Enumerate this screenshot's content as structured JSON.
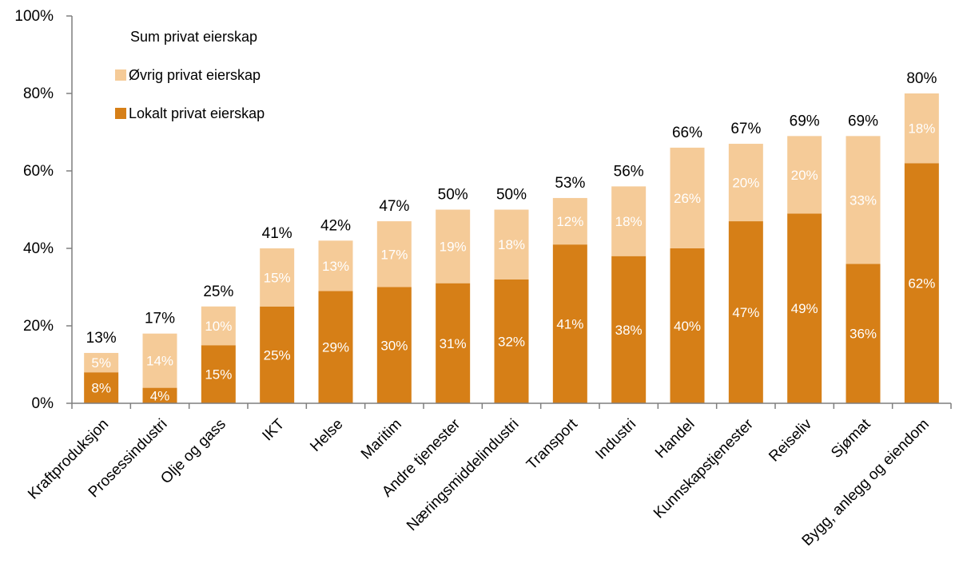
{
  "colors": {
    "local": "#d67f17",
    "other": "#f5cb98",
    "axis": "#7f7f7f"
  },
  "legend": {
    "total_label": "Sum privat eierskap",
    "other_label": "Øvrig privat eierskap",
    "local_label": "Lokalt privat eierskap"
  },
  "chart_data": {
    "type": "bar",
    "stacked": true,
    "categories": [
      "Kraftproduksjon",
      "Prosessindustri",
      "Olje og gass",
      "IKT",
      "Helse",
      "Maritim",
      "Andre tjenester",
      "Næringsmiddelindustri",
      "Transport",
      "Industri",
      "Handel",
      "Kunnskapstjenester",
      "Reiseliv",
      "Sjømat",
      "Bygg, anlegg og eiendom"
    ],
    "series": [
      {
        "name": "Lokalt privat eierskap",
        "values": [
          8,
          4,
          15,
          25,
          29,
          30,
          31,
          32,
          41,
          38,
          40,
          47,
          49,
          36,
          62
        ],
        "labels": [
          "8%",
          "4%",
          "15%",
          "25%",
          "29%",
          "30%",
          "31%",
          "32%",
          "41%",
          "38%",
          "40%",
          "47%",
          "49%",
          "36%",
          "62%"
        ]
      },
      {
        "name": "Øvrig privat eierskap",
        "values": [
          5,
          14,
          10,
          15,
          13,
          17,
          19,
          18,
          12,
          18,
          26,
          20,
          20,
          33,
          18
        ],
        "labels": [
          "5%",
          "14%",
          "10%",
          "15%",
          "13%",
          "17%",
          "19%",
          "18%",
          "12%",
          "18%",
          "26%",
          "20%",
          "20%",
          "33%",
          "18%"
        ]
      }
    ],
    "totals": {
      "name": "Sum privat eierskap",
      "values": [
        13,
        17,
        25,
        41,
        42,
        47,
        50,
        50,
        53,
        56,
        66,
        67,
        69,
        69,
        80
      ],
      "labels": [
        "13%",
        "17%",
        "25%",
        "41%",
        "42%",
        "47%",
        "50%",
        "50%",
        "53%",
        "56%",
        "66%",
        "67%",
        "69%",
        "69%",
        "80%"
      ]
    },
    "ylim": [
      0,
      100
    ],
    "yticks": [
      "0%",
      "20%",
      "40%",
      "60%",
      "80%",
      "100%"
    ],
    "grid": false,
    "legend_position": "top-left"
  }
}
